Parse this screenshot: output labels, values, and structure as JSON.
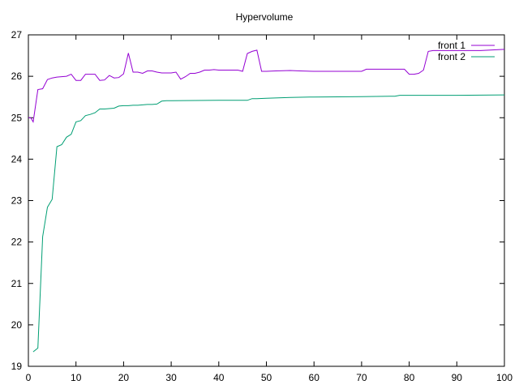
{
  "chart_data": {
    "type": "line",
    "title": "Hypervolume",
    "xlabel": "",
    "ylabel": "",
    "xlim": [
      0,
      100
    ],
    "ylim": [
      19,
      27
    ],
    "xticks": [
      0,
      10,
      20,
      30,
      40,
      50,
      60,
      70,
      80,
      90,
      100
    ],
    "yticks": [
      19,
      20,
      21,
      22,
      23,
      24,
      25,
      26,
      27
    ],
    "grid": false,
    "legend": "top-right",
    "series": [
      {
        "name": "front 1",
        "color": "#9400d3",
        "x": [
          0,
          0.5,
          1,
          2,
          3,
          4,
          5,
          6,
          7,
          8,
          9,
          10,
          11,
          12,
          13,
          14,
          15,
          16,
          17,
          18,
          19,
          20,
          21,
          22,
          23,
          24,
          25,
          26,
          27,
          28,
          29,
          30,
          31,
          32,
          33,
          34,
          35,
          36,
          37,
          38,
          39,
          40,
          41,
          42,
          43,
          44,
          45,
          46,
          47,
          48,
          49,
          50,
          52,
          55,
          57,
          60,
          65,
          70,
          71,
          72,
          75,
          78,
          79,
          80,
          81,
          82,
          83,
          84,
          85,
          90,
          95,
          100
        ],
        "y": [
          25.0,
          25.0,
          24.9,
          25.68,
          25.7,
          25.92,
          25.96,
          25.98,
          25.99,
          26.0,
          26.05,
          25.9,
          25.9,
          26.05,
          26.05,
          26.05,
          25.9,
          25.91,
          26.02,
          25.96,
          25.97,
          26.06,
          26.56,
          26.1,
          26.1,
          26.07,
          26.13,
          26.13,
          26.1,
          26.08,
          26.08,
          26.08,
          26.1,
          25.93,
          25.99,
          26.07,
          26.07,
          26.1,
          26.15,
          26.15,
          26.16,
          26.15,
          26.15,
          26.15,
          26.15,
          26.15,
          26.12,
          26.55,
          26.6,
          26.63,
          26.12,
          26.12,
          26.13,
          26.14,
          26.13,
          26.12,
          26.12,
          26.12,
          26.17,
          26.17,
          26.17,
          26.17,
          26.17,
          26.05,
          26.05,
          26.07,
          26.15,
          26.6,
          26.62,
          26.62,
          26.62,
          26.65
        ]
      },
      {
        "name": "front 2",
        "color": "#009e73",
        "x": [
          1,
          2,
          3,
          4,
          5,
          6,
          7,
          8,
          9,
          10,
          11,
          12,
          13,
          14,
          15,
          16,
          17,
          18,
          19,
          20,
          21,
          22,
          23,
          24,
          25,
          26,
          27,
          28,
          29,
          30,
          40,
          45,
          46,
          47,
          48,
          50,
          55,
          60,
          70,
          76,
          77,
          78,
          80,
          90,
          100
        ],
        "y": [
          19.35,
          19.44,
          22.13,
          22.84,
          23.03,
          24.3,
          24.35,
          24.53,
          24.6,
          24.9,
          24.93,
          25.05,
          25.08,
          25.12,
          25.21,
          25.21,
          25.22,
          25.23,
          25.28,
          25.29,
          25.29,
          25.3,
          25.3,
          25.31,
          25.32,
          25.32,
          25.33,
          25.4,
          25.41,
          25.41,
          25.42,
          25.42,
          25.42,
          25.46,
          25.46,
          25.47,
          25.49,
          25.5,
          25.51,
          25.52,
          25.52,
          25.54,
          25.54,
          25.54,
          25.55
        ]
      }
    ]
  }
}
